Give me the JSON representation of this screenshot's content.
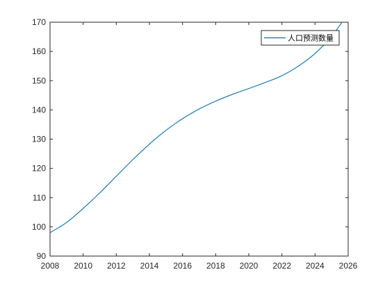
{
  "chart_data": {
    "type": "line",
    "xlim": [
      2008,
      2026
    ],
    "ylim": [
      90,
      170
    ],
    "x_ticks": [
      "2008",
      "2010",
      "2012",
      "2014",
      "2016",
      "2018",
      "2020",
      "2022",
      "2024",
      "2026"
    ],
    "y_ticks": [
      "90",
      "100",
      "110",
      "120",
      "130",
      "140",
      "150",
      "160",
      "170"
    ],
    "grid": false,
    "legend_position": "top-right",
    "series": [
      {
        "name": "人口预测数量",
        "color": "#0072bd",
        "x": [
          2008,
          2009,
          2010,
          2011,
          2012,
          2013,
          2014,
          2015,
          2016,
          2017,
          2018,
          2019,
          2020,
          2021,
          2022,
          2023,
          2024,
          2025,
          2026
        ],
        "y": [
          98.0,
          101.5,
          106.3,
          111.6,
          117.3,
          123.0,
          128.3,
          133.0,
          137.0,
          140.3,
          143.0,
          145.3,
          147.3,
          149.4,
          151.7,
          155.0,
          159.3,
          165.2,
          173.0
        ]
      }
    ]
  }
}
